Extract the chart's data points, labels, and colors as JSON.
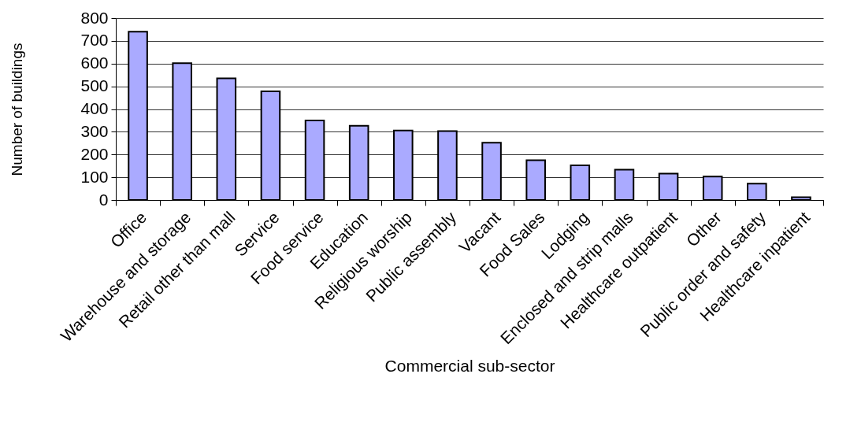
{
  "chart_data": {
    "type": "bar",
    "xlabel": "Commercial sub-sector",
    "ylabel": "Number of buildings",
    "categories": [
      "Office",
      "Warehouse and storage",
      "Retail other than mall",
      "Service",
      "Food service",
      "Education",
      "Religious worship",
      "Public assembly",
      "Vacant",
      "Food Sales",
      "Lodging",
      "Enclosed and strip malls",
      "Healthcare outpatient",
      "Other",
      "Public order and safety",
      "Healthcare inpatient"
    ],
    "values": [
      740,
      602,
      535,
      478,
      350,
      326,
      306,
      303,
      252,
      175,
      152,
      133,
      116,
      103,
      72,
      12
    ],
    "color": "#aaaaff",
    "ylim": [
      0,
      800
    ],
    "yticks": [
      0,
      100,
      200,
      300,
      400,
      500,
      600,
      700,
      800
    ],
    "grid": "y"
  }
}
